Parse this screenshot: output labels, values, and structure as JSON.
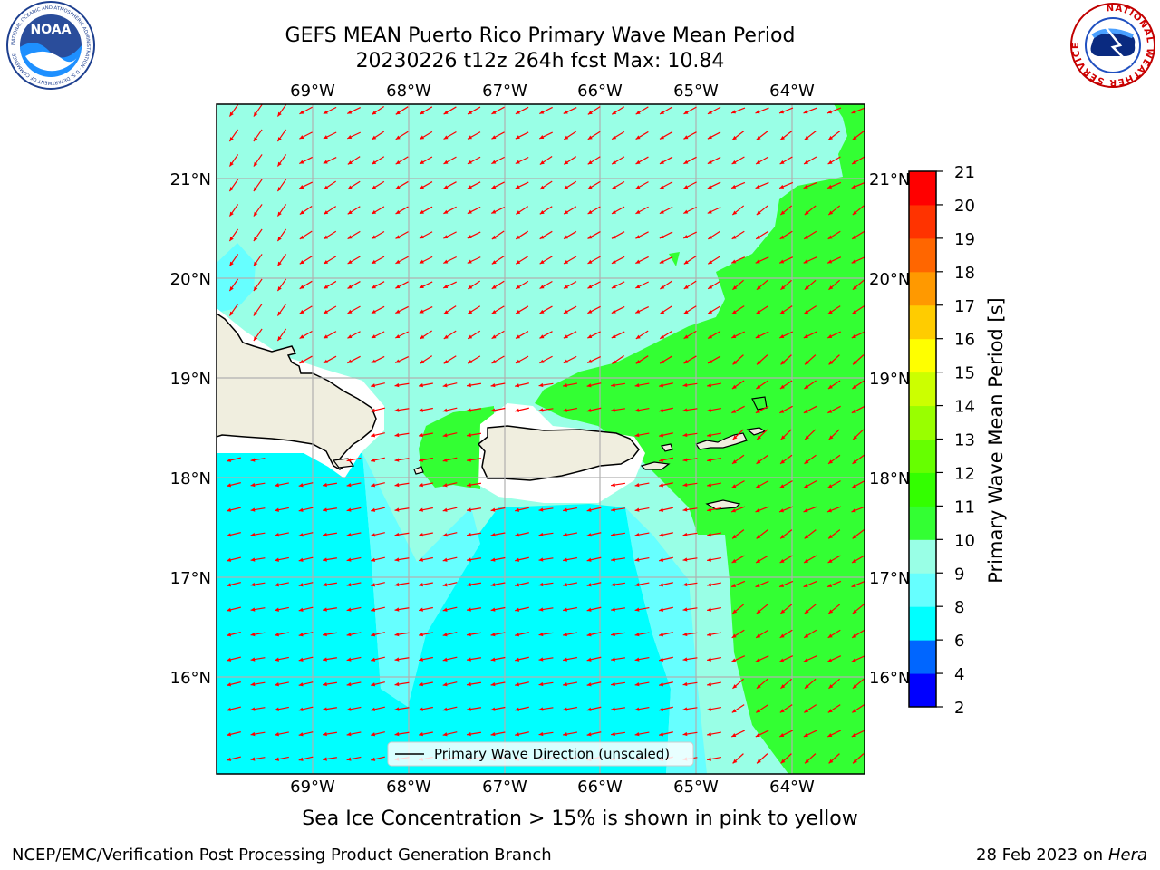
{
  "header": {
    "title_line1": "GEFS MEAN Puerto Rico Primary Wave Mean Period",
    "title_line2": "20230226 t12z 264h fcst   Max: 10.84"
  },
  "logos": {
    "noaa_logo_text": "NOAA",
    "noaa_ring_text": "NATIONAL OCEANIC AND ATMOSPHERIC ADMINISTRATION · U.S. DEPARTMENT OF COMMERCE",
    "nws_ring_text": "NATIONAL WEATHER SERVICE"
  },
  "map": {
    "lon_labels": [
      "69°W",
      "68°W",
      "67°W",
      "66°W",
      "65°W",
      "64°W"
    ],
    "lat_labels": [
      "21°N",
      "20°N",
      "19°N",
      "18°N",
      "17°N",
      "16°N"
    ],
    "legend_label": "Primary Wave Direction (unscaled)",
    "arrow_color": "#ff0000"
  },
  "colorbar": {
    "label": "Primary Wave Mean Period [s]",
    "ticks": [
      "2",
      "4",
      "6",
      "8",
      "9",
      "10",
      "11",
      "12",
      "13",
      "14",
      "15",
      "16",
      "17",
      "18",
      "19",
      "20",
      "21"
    ],
    "colors": [
      "#0000ff",
      "#0066ff",
      "#00ffff",
      "#66ffff",
      "#99ffe6",
      "#33ff33",
      "#33ff00",
      "#66ff00",
      "#99ff00",
      "#ccff00",
      "#ffff00",
      "#ffcc00",
      "#ff9900",
      "#ff6600",
      "#ff3300",
      "#ff0000"
    ]
  },
  "footer": {
    "note": "Sea Ice Concentration > 15% is shown in pink to yellow",
    "credit": "NCEP/EMC/Verification Post Processing Product Generation Branch",
    "date": "28 Feb 2023 on",
    "host": "Hera"
  }
}
